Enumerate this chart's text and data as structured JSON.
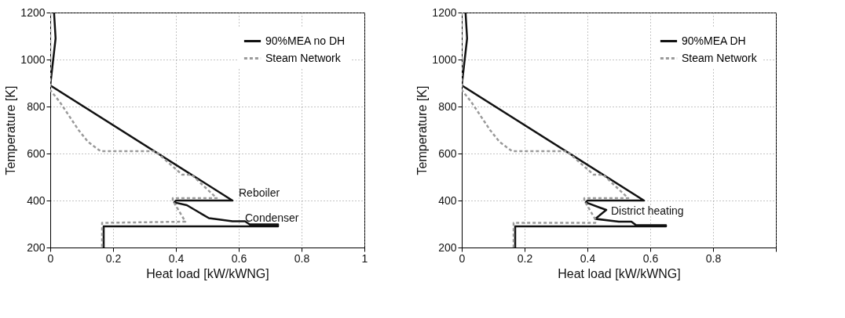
{
  "chart_data": [
    {
      "type": "line",
      "xlabel": "Heat load [kW/kWNG]",
      "ylabel": "Temperature [K]",
      "xlim": [
        0,
        1
      ],
      "xticks": [
        0,
        0.2,
        0.4,
        0.6,
        0.8,
        1
      ],
      "ylim": [
        200,
        1200
      ],
      "yticks": [
        200,
        400,
        600,
        800,
        1000,
        1200
      ],
      "grid": true,
      "legend": "top right",
      "marker": "none",
      "series": [
        {
          "name": "90%MEA no DH",
          "color": "#111111",
          "line_style": "solid",
          "x": [
            0.012,
            0.017,
            0.0,
            0.58,
            0.4,
            0.395,
            0.435,
            0.505,
            0.58,
            0.62,
            0.635,
            0.725,
            0.725,
            0.17,
            0.17
          ],
          "values": [
            1200,
            1090,
            890,
            400,
            400,
            392,
            380,
            325,
            312,
            312,
            298,
            298,
            290,
            290,
            200
          ]
        },
        {
          "name": "Steam Network",
          "color": "#9a9a9a",
          "line_style": "dashed",
          "x": [
            0.0,
            0.0,
            0.03,
            0.06,
            0.09,
            0.12,
            0.16,
            0.335,
            0.36,
            0.42,
            0.45,
            0.53,
            0.39,
            0.39,
            0.43,
            0.165,
            0.165
          ],
          "values": [
            1200,
            870,
            820,
            760,
            700,
            650,
            610,
            610,
            580,
            510,
            510,
            410,
            410,
            400,
            310,
            305,
            200
          ]
        }
      ],
      "annotations": [
        "Reboiler",
        "Condenser"
      ]
    },
    {
      "type": "line",
      "xlabel": "Heat load [kW/kWNG]",
      "ylabel": "Temperature [K]",
      "xlim": [
        0,
        1
      ],
      "xticks": [
        0,
        0.2,
        0.4,
        0.6,
        0.8,
        {
          "value": 1,
          "label": null
        }
      ],
      "ylim": [
        200,
        1200
      ],
      "yticks": [
        200,
        400,
        600,
        800,
        1000,
        1200
      ],
      "grid": true,
      "legend": "top right",
      "marker": "none",
      "series": [
        {
          "name": "90%MEA DH",
          "color": "#111111",
          "line_style": "solid",
          "x": [
            0.012,
            0.017,
            0.0,
            0.58,
            0.4,
            0.395,
            0.46,
            0.425,
            0.5,
            0.54,
            0.555,
            0.65,
            0.65,
            0.17,
            0.17
          ],
          "values": [
            1200,
            1090,
            890,
            400,
            400,
            392,
            360,
            322,
            310,
            310,
            295,
            295,
            290,
            290,
            200
          ]
        },
        {
          "name": "Steam Network",
          "color": "#9a9a9a",
          "line_style": "dashed",
          "x": [
            0.0,
            0.0,
            0.03,
            0.06,
            0.09,
            0.12,
            0.16,
            0.335,
            0.36,
            0.42,
            0.45,
            0.53,
            0.39,
            0.39,
            0.425,
            0.425,
            0.165,
            0.165
          ],
          "values": [
            1200,
            870,
            820,
            760,
            700,
            650,
            610,
            610,
            580,
            510,
            510,
            410,
            410,
            400,
            320,
            305,
            305,
            200
          ]
        }
      ],
      "annotations": [
        {
          "text": "District heating",
          "x": 0.47,
          "y": 355
        }
      ]
    }
  ]
}
